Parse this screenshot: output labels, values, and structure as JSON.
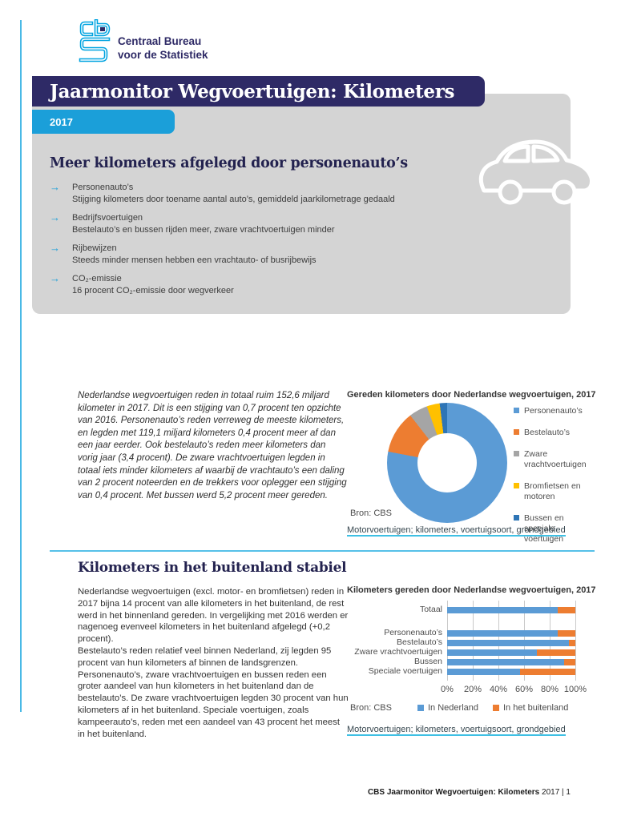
{
  "colors": {
    "cyan_accent": "#1b9fd9",
    "navy_banner": "#2e2a66",
    "heading_navy": "#23224f",
    "hero_box_gray": "#d4d4d4",
    "rule_light_blue": "#49b9e6",
    "link_underline": "#3fc0e4",
    "chart_blue": "#5b9bd5",
    "chart_orange": "#ed7d31",
    "chart_gray": "#a5a5a5",
    "chart_yellow": "#ffc000",
    "chart_darkblue": "#2e75b6"
  },
  "logo": {
    "mark": "cbs-logo",
    "line1": "Centraal Bureau",
    "line2": "voor de Statistiek"
  },
  "banner": {
    "title": "Jaarmonitor Wegvoertuigen: Kilometers",
    "year": "2017"
  },
  "hero": {
    "heading": "Meer kilometers afgelegd door personenauto’s",
    "bullets": [
      {
        "title": "Personenauto’s",
        "text": "Stijging kilometers door toename aantal auto’s, gemiddeld jaarkilometrage gedaald"
      },
      {
        "title": "Bedrijfsvoertuigen",
        "text": "Bestelauto’s en bussen rijden meer, zware vrachtvoertuigen minder"
      },
      {
        "title": "Rijbewijzen",
        "text": "Steeds minder mensen hebben een vrachtauto- of busrijbewijs"
      },
      {
        "title": "CO₂-emissie",
        "text": "16 procent CO₂-emissie door wegverkeer"
      }
    ]
  },
  "section1": {
    "paragraph": "Nederlandse wegvoertuigen reden in totaal ruim 152,6 miljard kilometer in 2017. Dit is een stijging van 0,7 procent ten opzichte van 2016. Personenauto’s reden verreweg de meeste kilometers, en legden met 119,1 miljard kilometers 0,4 procent meer af dan een jaar eerder. Ook bestelauto’s reden meer kilometers dan vorig jaar (3,4 procent). De zware vrachtvoertuigen legden in totaal iets minder kilometers af waarbij de vrachtauto’s een daling van 2 procent noteerden en de trekkers voor oplegger een stijging van 0,4 procent. Met bussen werd 5,2 procent meer gereden.",
    "source": "Bron: CBS",
    "link": "Motorvoertuigen; kilometers, voertuigsoort, grondgebied"
  },
  "section2": {
    "heading": "Kilometers in het buitenland stabiel",
    "paragraph1": "Nederlandse wegvoertuigen (excl. motor- en bromfietsen) reden in 2017 bijna 14 procent van alle kilometers in het buitenland, de rest werd in het binnenland gereden. In vergelijking met 2016 werden er nagenoeg evenveel kilometers in het buitenland afgelegd (+0,2 procent).",
    "paragraph2": "Bestelauto’s reden relatief veel binnen Nederland, zij legden 95 procent van hun kilometers af binnen de landsgrenzen. Personenauto’s, zware vrachtvoertuigen en bussen reden een groter aandeel van hun kilometers in het buitenland dan de bestelauto’s. De zware vrachtvoertuigen legden 30 procent van hun kilometers af in het buitenland. Speciale voertuigen, zoals kampeerauto’s, reden met een aandeel van 43 procent het meest in het buitenland.",
    "source": "Bron: CBS",
    "link": "Motorvoertuigen; kilometers, voertuigsoort, grondgebied"
  },
  "footer": {
    "bold": "CBS Jaarmonitor Wegvoertuigen: Kilometers",
    "regular": " 2017 | 1"
  },
  "chart_data": [
    {
      "type": "pie",
      "donut": true,
      "title": "Gereden kilometers door Nederlandse wegvoertuigen, 2017",
      "labels": [
        "Personenauto’s",
        "Bestelauto’s",
        "Zware vrachtvoertuigen",
        "Bromfietsen en motoren",
        "Bussen en speciale voertuigen"
      ],
      "values_percent": [
        78,
        11.5,
        5,
        3.5,
        2
      ],
      "colors": [
        "#5b9bd5",
        "#ed7d31",
        "#a5a5a5",
        "#ffc000",
        "#2e75b6"
      ],
      "legend_position": "right",
      "source": "Bron: CBS"
    },
    {
      "type": "bar",
      "orientation": "horizontal",
      "stacked": true,
      "title": "Kilometers gereden door Nederlandse wegvoertuigen, 2017",
      "categories": [
        "Totaal",
        "Personenauto’s",
        "Bestelauto’s",
        "Zware vrachtvoertuigen",
        "Bussen",
        "Speciale voertuigen"
      ],
      "series": [
        {
          "name": "In Nederland",
          "color": "#5b9bd5",
          "values": [
            86,
            86,
            95,
            70,
            91,
            57
          ]
        },
        {
          "name": "In het buitenland",
          "color": "#ed7d31",
          "values": [
            14,
            14,
            5,
            30,
            9,
            43
          ]
        }
      ],
      "x_ticks": [
        "0%",
        "20%",
        "40%",
        "60%",
        "80%",
        "100%"
      ],
      "xlim": [
        0,
        100
      ],
      "grid": true,
      "legend_position": "bottom",
      "source": "Bron: CBS"
    }
  ]
}
